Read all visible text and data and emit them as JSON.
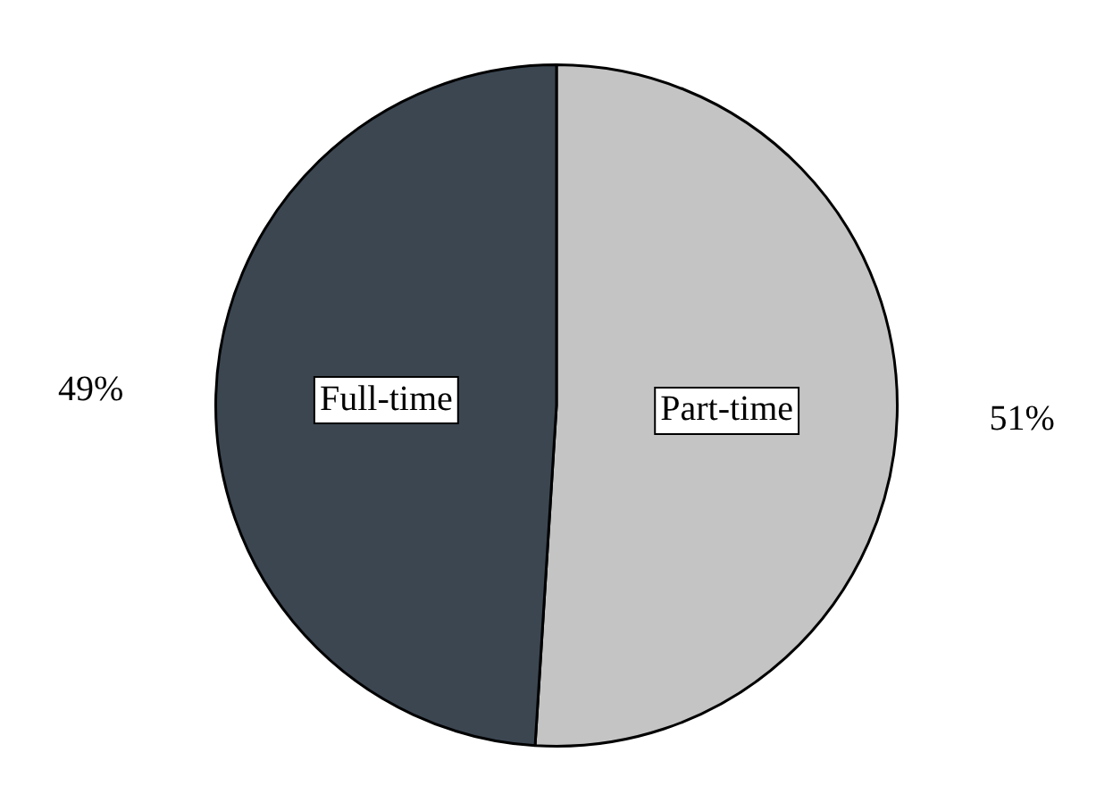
{
  "chart_data": {
    "type": "pie",
    "categories": [
      "Part-time",
      "Full-time"
    ],
    "values": [
      51,
      49
    ],
    "colors": [
      "#c4c4c4",
      "#3b4651"
    ],
    "value_labels": [
      "51%",
      "49%"
    ],
    "legend": false
  }
}
